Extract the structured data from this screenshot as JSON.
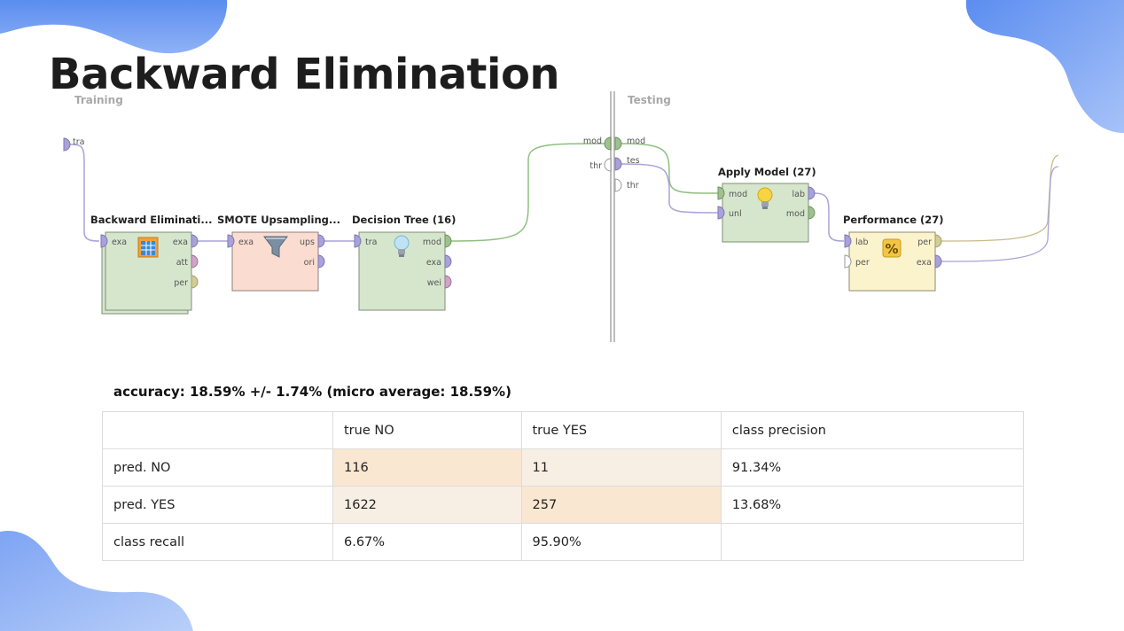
{
  "slide": {
    "title": "Backward Elimination"
  },
  "process": {
    "training_label": "Training",
    "testing_label": "Testing",
    "input_port": "tra",
    "operators": [
      {
        "title": "Backward Eliminati...",
        "inputs": [
          "exa"
        ],
        "outputs": [
          "exa",
          "att",
          "per"
        ],
        "icon": "table-icon"
      },
      {
        "title": "SMOTE Upsampling...",
        "inputs": [
          "exa"
        ],
        "outputs": [
          "ups",
          "ori"
        ],
        "icon": "funnel-icon"
      },
      {
        "title": "Decision Tree (16)",
        "inputs": [
          "tra"
        ],
        "outputs": [
          "mod",
          "exa",
          "wei"
        ],
        "icon": "lightbulb-icon"
      },
      {
        "title": "Apply Model (27)",
        "inputs": [
          "mod",
          "unl"
        ],
        "outputs": [
          "lab",
          "mod"
        ],
        "icon": "lightbulb-icon"
      },
      {
        "title": "Performance (27)",
        "inputs": [
          "lab",
          "per"
        ],
        "outputs": [
          "per",
          "exa"
        ],
        "icon": "percent-icon"
      }
    ],
    "divider_ports": {
      "left": [
        "mod",
        "thr"
      ],
      "right": [
        "mod",
        "tes",
        "thr"
      ]
    },
    "colors": {
      "green_wire": "#8fbf7f",
      "purple_wire": "#a9a2d8",
      "tan_wire": "#c9b98a"
    }
  },
  "results": {
    "accuracy_text": "accuracy: 18.59% +/- 1.74% (micro average: 18.59%)",
    "headers": [
      "",
      "true NO",
      "true YES",
      "class precision"
    ],
    "rows": [
      [
        "pred. NO",
        "116",
        "11",
        "91.34%"
      ],
      [
        "pred. YES",
        "1622",
        "257",
        "13.68%"
      ],
      [
        "class recall",
        "6.67%",
        "95.90%",
        ""
      ]
    ]
  }
}
